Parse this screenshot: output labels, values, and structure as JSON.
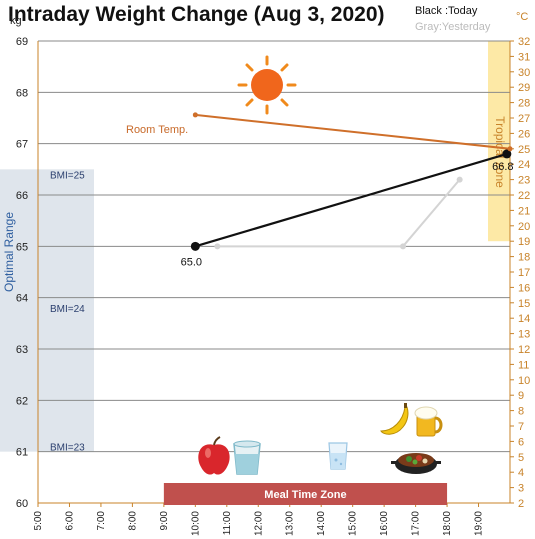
{
  "chart_data": {
    "type": "line",
    "title": "Intraday Weight Change (Aug 3, 2020)",
    "legend": {
      "today": "Black :Today",
      "yesterday": "Gray:Yesterday"
    },
    "y_left": {
      "unit": "kg",
      "range": [
        60,
        69
      ],
      "ticks": [
        "60",
        "61",
        "62",
        "63",
        "64",
        "65",
        "66",
        "67",
        "68",
        "69"
      ]
    },
    "y_right": {
      "unit": "°C",
      "range": [
        2,
        32
      ],
      "ticks": [
        "2",
        "3",
        "4",
        "5",
        "6",
        "7",
        "8",
        "9",
        "10",
        "11",
        "12",
        "13",
        "14",
        "15",
        "16",
        "17",
        "18",
        "19",
        "20",
        "21",
        "22",
        "23",
        "24",
        "25",
        "26",
        "27",
        "28",
        "29",
        "30",
        "31",
        "32"
      ]
    },
    "x": {
      "range": [
        5,
        20
      ],
      "ticks": [
        {
          "value": 5,
          "label": "5:00"
        },
        {
          "value": 6,
          "label": "6:00"
        },
        {
          "value": 7,
          "label": "7:00"
        },
        {
          "value": 8,
          "label": "8:00"
        },
        {
          "value": 9,
          "label": "9:00"
        },
        {
          "value": 10,
          "label": "10:00"
        },
        {
          "value": 11,
          "label": "11:00"
        },
        {
          "value": 12,
          "label": "12:00"
        },
        {
          "value": 13,
          "label": "13:00"
        },
        {
          "value": 14,
          "label": "14:00"
        },
        {
          "value": 15,
          "label": "15:00"
        },
        {
          "value": 16,
          "label": "16:00"
        },
        {
          "value": 17,
          "label": "17:00"
        },
        {
          "value": 18,
          "label": "18:00"
        },
        {
          "value": 19,
          "label": "19:00"
        }
      ]
    },
    "series": [
      {
        "name": "Today",
        "color": "#111111",
        "points": [
          {
            "x": 10.0,
            "y": 65.0,
            "label": "65.0"
          },
          {
            "x": 19.9,
            "y": 66.8,
            "label": "66.8"
          }
        ]
      },
      {
        "name": "Yesterday",
        "color": "#d4d4d4",
        "points": [
          {
            "x": 10.7,
            "y": 65.0
          },
          {
            "x": 16.6,
            "y": 65.0
          },
          {
            "x": 18.4,
            "y": 66.3
          }
        ]
      },
      {
        "name": "Room Temp.",
        "color": "#cf6f2a",
        "axis": "right",
        "points": [
          {
            "x": 10.0,
            "y": 27.2
          },
          {
            "x": 20.0,
            "y": 25.0
          }
        ]
      }
    ],
    "annotations": {
      "room_temp": "Room Temp.",
      "optimal_range": {
        "label": "Optimal Range",
        "range": [
          61,
          66.5
        ],
        "color": "#dfe5ec"
      },
      "bmi_lines": [
        {
          "label": "BMI=25",
          "y": 66.4
        },
        {
          "label": "BMI=24",
          "y": 63.8
        },
        {
          "label": "BMI=23",
          "y": 61.1
        }
      ],
      "tropical_zone": {
        "label": "Tropical zone",
        "range": [
          19,
          32
        ],
        "color": "#fde9a6"
      },
      "meal_time_zone": {
        "label": "Meal Time Zone",
        "range": [
          9.0,
          18.0
        ],
        "color": "#c0504d"
      }
    },
    "icons": [
      "sun-icon",
      "apple-icon",
      "glass-icon",
      "water-glass-icon",
      "banana-icon",
      "beer-mug-icon",
      "hotpot-icon"
    ],
    "grid": true
  }
}
